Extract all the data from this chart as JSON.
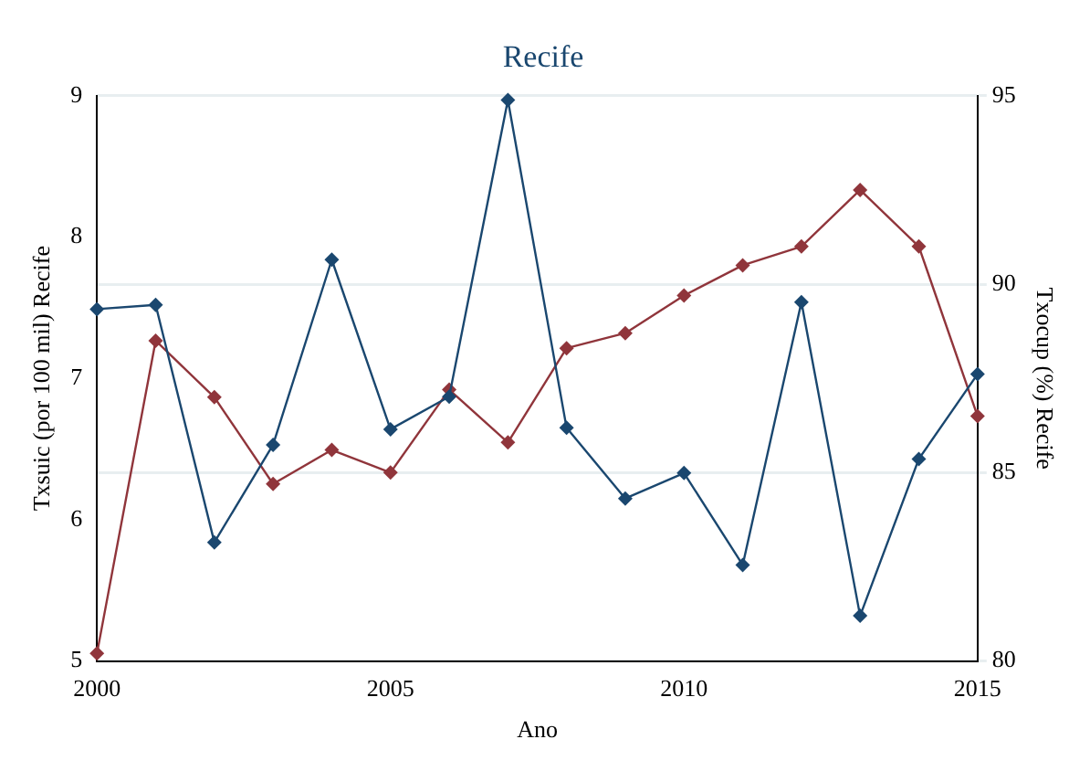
{
  "chart_data": {
    "type": "line",
    "title": "Recife",
    "xlabel": "Ano",
    "ylabel": "Txsuic (por 100 mil) Recife",
    "y2label": "Txocup (%) Recife",
    "x": [
      2000,
      2001,
      2002,
      2003,
      2004,
      2005,
      2006,
      2007,
      2008,
      2009,
      2010,
      2011,
      2012,
      2013,
      2014,
      2015
    ],
    "series": [
      {
        "color": "#1a476f",
        "values": [
          7.49,
          7.52,
          5.84,
          6.53,
          7.84,
          6.64,
          6.87,
          8.97,
          6.65,
          6.15,
          6.33,
          5.68,
          7.54,
          5.32,
          6.43,
          7.03
        ]
      },
      {
        "color": "#90353b",
        "axis": "y2",
        "values": [
          80.2,
          88.5,
          87.0,
          84.7,
          85.6,
          85.0,
          87.2,
          85.8,
          88.3,
          88.7,
          89.7,
          90.5,
          91.0,
          92.5,
          91.0,
          86.5
        ]
      }
    ],
    "xlim": [
      2000,
      2015
    ],
    "xticks": [
      2000,
      2005,
      2010,
      2015
    ],
    "ylim": [
      5,
      9
    ],
    "yticks": [
      5,
      6,
      7,
      8,
      9
    ],
    "y2lim": [
      80,
      95
    ],
    "y2ticks": [
      80,
      85,
      90,
      95
    ],
    "grid": "y",
    "marker": "diamond",
    "line_style": "solid",
    "legend": false
  }
}
